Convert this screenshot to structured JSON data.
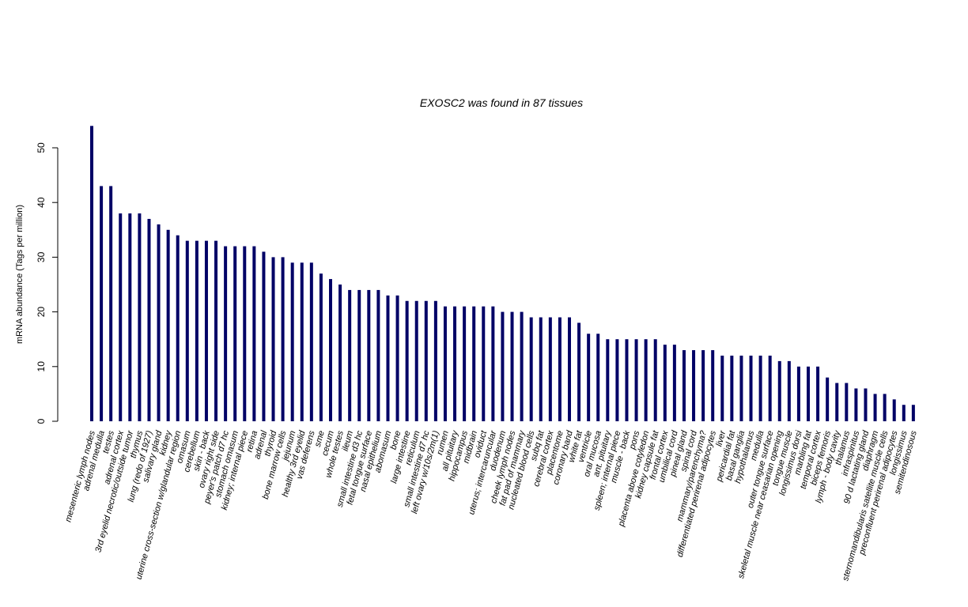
{
  "chart_data": {
    "type": "bar",
    "title": "EXOSC2  was found in  87  tissues",
    "ylabel": "mRNA abundance (Tags per million)",
    "xlabel": "",
    "ylim": [
      0,
      54
    ],
    "yticks": [
      0,
      10,
      20,
      30,
      40,
      50
    ],
    "grid": false,
    "bar_color": "#000066",
    "categories": [
      "mesenteric lymph nodes",
      "adrenal medulla",
      "testes",
      "adrenal cortex",
      "3rd eyelid necrotic/outside tumor",
      "thymus",
      "lung (redo of 1927)",
      "salivary gland",
      "kidney",
      "uterine cross-section w/glandular region",
      "omasum",
      "cerebellum",
      "skin - back",
      "ovary right side",
      "peyer's patch d7 hc",
      "stomach omasum",
      "kidney; internal piece",
      "retina",
      "adrenal",
      "thyroid",
      "bone marrow cells",
      "jejunum",
      "healthy 3rd eyelid",
      "vas deferens",
      "sme",
      "cecum",
      "whole testes",
      "ileum",
      "small intestine d3 hc",
      "fetal tongue surface",
      "nasal epithelium",
      "abomasum",
      "bone",
      "large intestine",
      "reticulum",
      "small intestine d7 hc",
      "left ovary w/10s/2m(1)",
      "rumen",
      "all pituitary",
      "hippocampus",
      "midbrain",
      "oviduct",
      "uterus; intercaruncular",
      "duodenum",
      "cheek lymph nodes",
      "fat pad of mammary",
      "nucleated blood cells",
      "subq fat",
      "cerebral cortex",
      "placentome",
      "coronary band",
      "white fat",
      "ventricle",
      "oral mucosa",
      "ant. pituitary",
      "spleen; internal piece",
      "muscle - back",
      "pons",
      "placenta above cotyledon",
      "kidney capsule fat",
      "frontal cortex",
      "umbilical cord",
      "pineal gland",
      "spinal cord",
      "mammary/parenchyma?",
      "differentiated perirenal adipocytes",
      "liver",
      "pericardial fat",
      "basal ganglia",
      "hypothalamus",
      "medulla",
      "outer tongue surface",
      "skeletal muscle near ceasarian opening",
      "tongue muscle",
      "longissimus dorsi",
      "marbling fat",
      "temporal cortex",
      "biceps femoris",
      "lymph - body cavity",
      "thalamus",
      "infraspinitus",
      "90 d lactating gland",
      "diaphragm",
      "sternomandibularis satellite muscle cells",
      "preconfluent perirenal adipocytes",
      "longissimus",
      "semitendinosous"
    ],
    "values": [
      54,
      43,
      43,
      38,
      38,
      38,
      37,
      36,
      35,
      34,
      33,
      33,
      33,
      33,
      32,
      32,
      32,
      32,
      31,
      30,
      30,
      29,
      29,
      29,
      27,
      26,
      25,
      24,
      24,
      24,
      24,
      23,
      23,
      22,
      22,
      22,
      22,
      21,
      21,
      21,
      21,
      21,
      21,
      20,
      20,
      20,
      19,
      19,
      19,
      19,
      19,
      18,
      16,
      16,
      15,
      15,
      15,
      15,
      15,
      15,
      14,
      14,
      13,
      13,
      13,
      13,
      12,
      12,
      12,
      12,
      12,
      12,
      11,
      11,
      10,
      10,
      10,
      8,
      7,
      7,
      6,
      6,
      5,
      5,
      4,
      3,
      3
    ]
  }
}
